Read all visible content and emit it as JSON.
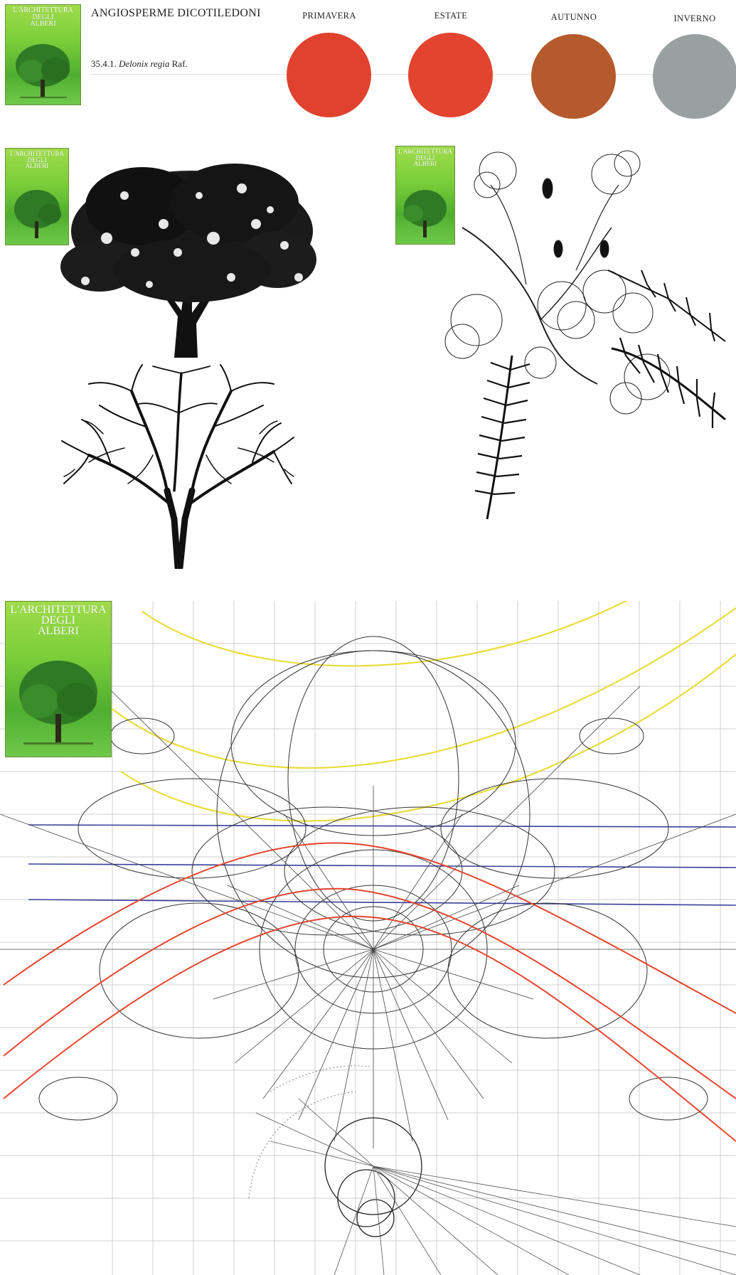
{
  "header": {
    "category": "ANGIOSPERME DICOTILEDONI",
    "code": "35.4.1.",
    "species": "Delonix regia",
    "author": "Raf."
  },
  "seasons": [
    {
      "label": "PRIMAVERA",
      "color": "#e0422f"
    },
    {
      "label": "ESTATE",
      "color": "#e3442f"
    },
    {
      "label": "AUTUNNO",
      "color": "#b55a2c"
    },
    {
      "label": "INVERNO",
      "color": "#9aa0a0"
    }
  ],
  "cover": {
    "line1": "L'ARCHITETTURA",
    "line2": "DEGLI",
    "line3": "ALBERI"
  },
  "colors": {
    "cover_green": "#7ccf3a",
    "diagram_yellow": "#e8dd3a",
    "diagram_red": "#e5452e",
    "diagram_blue": "#3a3f9a",
    "grid": "#cfcfcf"
  }
}
